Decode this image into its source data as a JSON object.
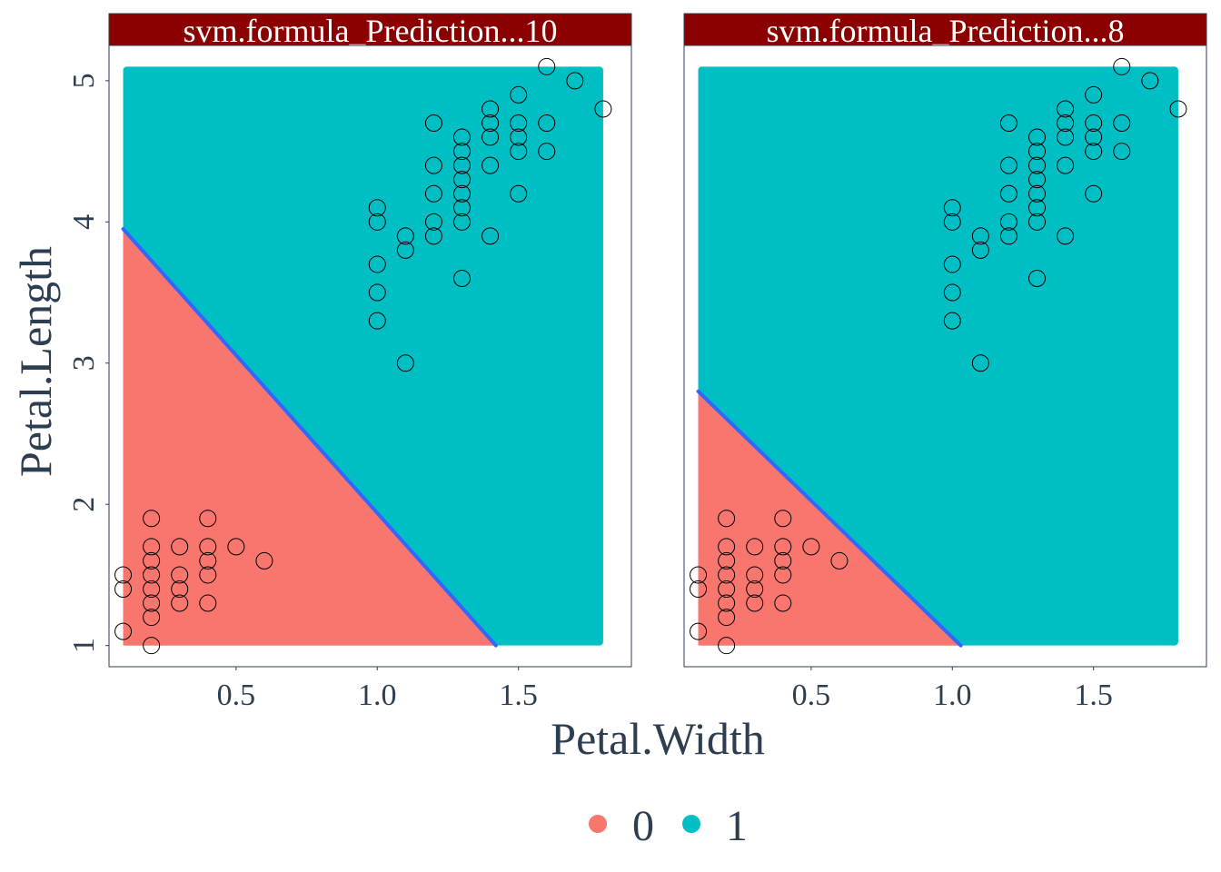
{
  "colors": {
    "class_0": "#F8766D",
    "class_1": "#00BFC4",
    "boundary": "#3366FF",
    "strip_bg": "#8B0000",
    "strip_text": "#FFFFFF",
    "axis_text": "#2C3E50",
    "panel_border": "#2C3E50"
  },
  "chart_data": {
    "type": "scatter",
    "xlabel": "Petal.Width",
    "ylabel": "Petal.Length",
    "xlim": [
      0.05,
      1.9
    ],
    "ylim": [
      0.85,
      5.25
    ],
    "x_ticks": [
      0.5,
      1.0,
      1.5
    ],
    "x_tick_labels": [
      "0.5",
      "1.0",
      "1.5"
    ],
    "y_ticks": [
      1,
      2,
      3,
      4,
      5
    ],
    "y_tick_labels": [
      "1",
      "2",
      "3",
      "4",
      "5"
    ],
    "grid": false,
    "legend": {
      "placement": "bottom",
      "entries": [
        {
          "label": "0",
          "color": "#F8766D"
        },
        {
          "label": "1",
          "color": "#00BFC4"
        }
      ]
    },
    "region_extent": {
      "x": [
        0.1,
        1.8
      ],
      "y": [
        1.0,
        5.1
      ]
    },
    "points": [
      {
        "x": 0.1,
        "y": 1.1
      },
      {
        "x": 0.1,
        "y": 1.4
      },
      {
        "x": 0.1,
        "y": 1.5
      },
      {
        "x": 0.2,
        "y": 1.0
      },
      {
        "x": 0.2,
        "y": 1.2
      },
      {
        "x": 0.2,
        "y": 1.3
      },
      {
        "x": 0.2,
        "y": 1.4
      },
      {
        "x": 0.2,
        "y": 1.5
      },
      {
        "x": 0.2,
        "y": 1.6
      },
      {
        "x": 0.2,
        "y": 1.7
      },
      {
        "x": 0.2,
        "y": 1.9
      },
      {
        "x": 0.3,
        "y": 1.3
      },
      {
        "x": 0.3,
        "y": 1.4
      },
      {
        "x": 0.3,
        "y": 1.5
      },
      {
        "x": 0.3,
        "y": 1.7
      },
      {
        "x": 0.4,
        "y": 1.3
      },
      {
        "x": 0.4,
        "y": 1.5
      },
      {
        "x": 0.4,
        "y": 1.6
      },
      {
        "x": 0.4,
        "y": 1.7
      },
      {
        "x": 0.4,
        "y": 1.9
      },
      {
        "x": 0.5,
        "y": 1.7
      },
      {
        "x": 0.6,
        "y": 1.6
      },
      {
        "x": 1.0,
        "y": 3.3
      },
      {
        "x": 1.0,
        "y": 3.5
      },
      {
        "x": 1.0,
        "y": 3.7
      },
      {
        "x": 1.0,
        "y": 4.0
      },
      {
        "x": 1.0,
        "y": 4.1
      },
      {
        "x": 1.1,
        "y": 3.0
      },
      {
        "x": 1.1,
        "y": 3.8
      },
      {
        "x": 1.1,
        "y": 3.9
      },
      {
        "x": 1.2,
        "y": 3.9
      },
      {
        "x": 1.2,
        "y": 4.0
      },
      {
        "x": 1.2,
        "y": 4.2
      },
      {
        "x": 1.2,
        "y": 4.4
      },
      {
        "x": 1.2,
        "y": 4.7
      },
      {
        "x": 1.3,
        "y": 3.6
      },
      {
        "x": 1.3,
        "y": 4.0
      },
      {
        "x": 1.3,
        "y": 4.1
      },
      {
        "x": 1.3,
        "y": 4.2
      },
      {
        "x": 1.3,
        "y": 4.3
      },
      {
        "x": 1.3,
        "y": 4.4
      },
      {
        "x": 1.3,
        "y": 4.5
      },
      {
        "x": 1.3,
        "y": 4.6
      },
      {
        "x": 1.4,
        "y": 3.9
      },
      {
        "x": 1.4,
        "y": 4.4
      },
      {
        "x": 1.4,
        "y": 4.6
      },
      {
        "x": 1.4,
        "y": 4.7
      },
      {
        "x": 1.4,
        "y": 4.8
      },
      {
        "x": 1.5,
        "y": 4.2
      },
      {
        "x": 1.5,
        "y": 4.5
      },
      {
        "x": 1.5,
        "y": 4.6
      },
      {
        "x": 1.5,
        "y": 4.7
      },
      {
        "x": 1.5,
        "y": 4.9
      },
      {
        "x": 1.6,
        "y": 4.5
      },
      {
        "x": 1.6,
        "y": 4.7
      },
      {
        "x": 1.6,
        "y": 5.1
      },
      {
        "x": 1.7,
        "y": 5.0
      },
      {
        "x": 1.8,
        "y": 4.8
      }
    ],
    "panels": [
      {
        "title": "svm.formula_Prediction...10",
        "decision_boundary": [
          [
            0.1,
            3.95
          ],
          [
            1.42,
            1.0
          ]
        ]
      },
      {
        "title": "svm.formula_Prediction...8",
        "decision_boundary": [
          [
            0.1,
            2.8
          ],
          [
            1.03,
            1.0
          ]
        ]
      }
    ]
  }
}
